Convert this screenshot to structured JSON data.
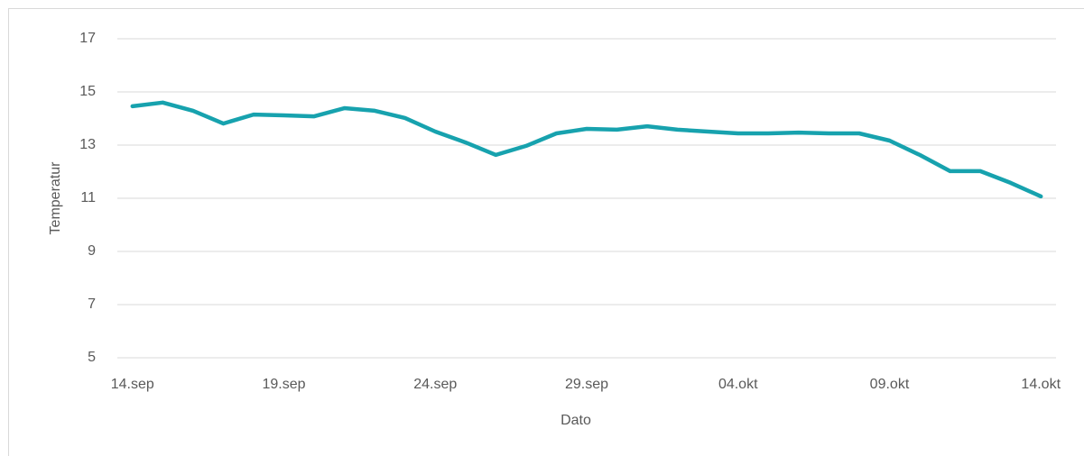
{
  "chart_data": {
    "type": "line",
    "x_label": "Dato",
    "y_label": "Temperatur",
    "categories": [
      "14.sep",
      null,
      null,
      null,
      null,
      "19.sep",
      null,
      null,
      null,
      null,
      "24.sep",
      null,
      null,
      null,
      null,
      "29.sep",
      null,
      null,
      null,
      null,
      "04.okt",
      null,
      null,
      null,
      null,
      "09.okt",
      null,
      null,
      null,
      null,
      "14.okt"
    ],
    "values": [
      14.46,
      14.6,
      14.29,
      13.81,
      14.15,
      14.12,
      14.08,
      14.39,
      14.29,
      14.02,
      13.51,
      13.1,
      12.63,
      12.97,
      13.44,
      13.61,
      13.58,
      13.71,
      13.58,
      13.51,
      13.44,
      13.44,
      13.47,
      13.44,
      13.44,
      13.17,
      12.63,
      12.02,
      12.02,
      11.58,
      11.07
    ],
    "color": "#17a2ae",
    "ylim": [
      5,
      17
    ],
    "yticks": [
      5,
      7,
      9,
      11,
      13,
      15,
      17
    ],
    "grid": true
  }
}
